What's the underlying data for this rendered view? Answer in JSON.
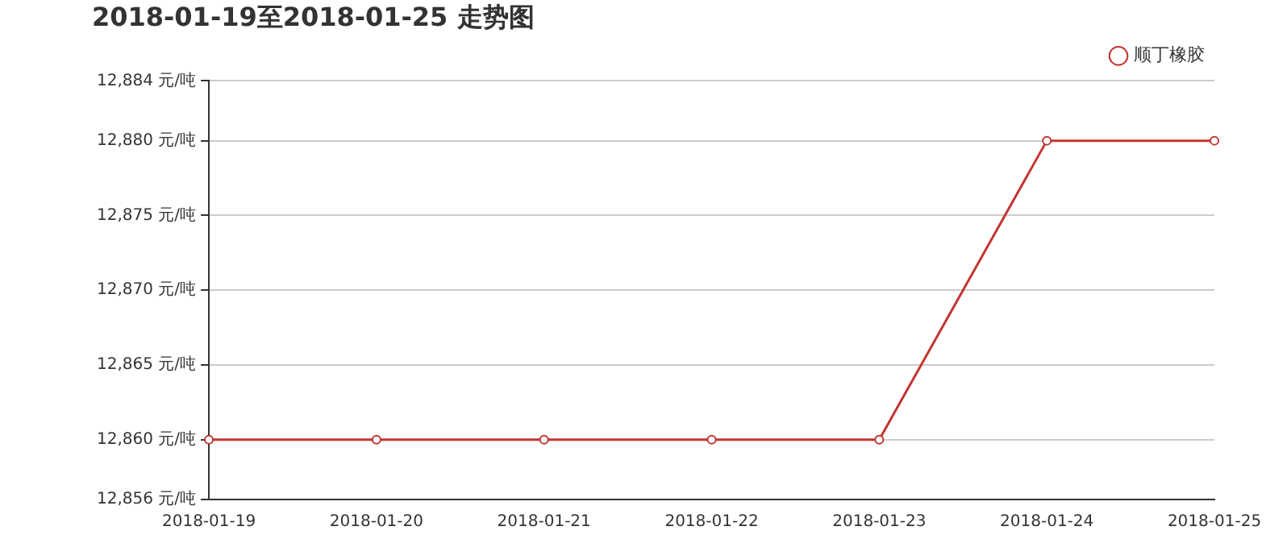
{
  "chart_data": {
    "type": "line",
    "title": "2018-01-19至2018-01-25 走势图",
    "categories": [
      "2018-01-19",
      "2018-01-20",
      "2018-01-21",
      "2018-01-22",
      "2018-01-23",
      "2018-01-24",
      "2018-01-25"
    ],
    "series": [
      {
        "name": "顺丁橡胶",
        "color": "#c23531",
        "values": [
          12860,
          12860,
          12860,
          12860,
          12860,
          12880,
          12880
        ]
      }
    ],
    "ylim": [
      12856,
      12884
    ],
    "yticks": [
      {
        "value": 12856,
        "label": "12,856 元/吨"
      },
      {
        "value": 12860,
        "label": "12,860 元/吨"
      },
      {
        "value": 12865,
        "label": "12,865 元/吨"
      },
      {
        "value": 12870,
        "label": "12,870 元/吨"
      },
      {
        "value": 12875,
        "label": "12,875 元/吨"
      },
      {
        "value": 12880,
        "label": "12,880 元/吨"
      },
      {
        "value": 12884,
        "label": "12,884 元/吨"
      }
    ],
    "grid": "y",
    "legend": "top right",
    "marker": "circle",
    "line_style": "solid"
  }
}
